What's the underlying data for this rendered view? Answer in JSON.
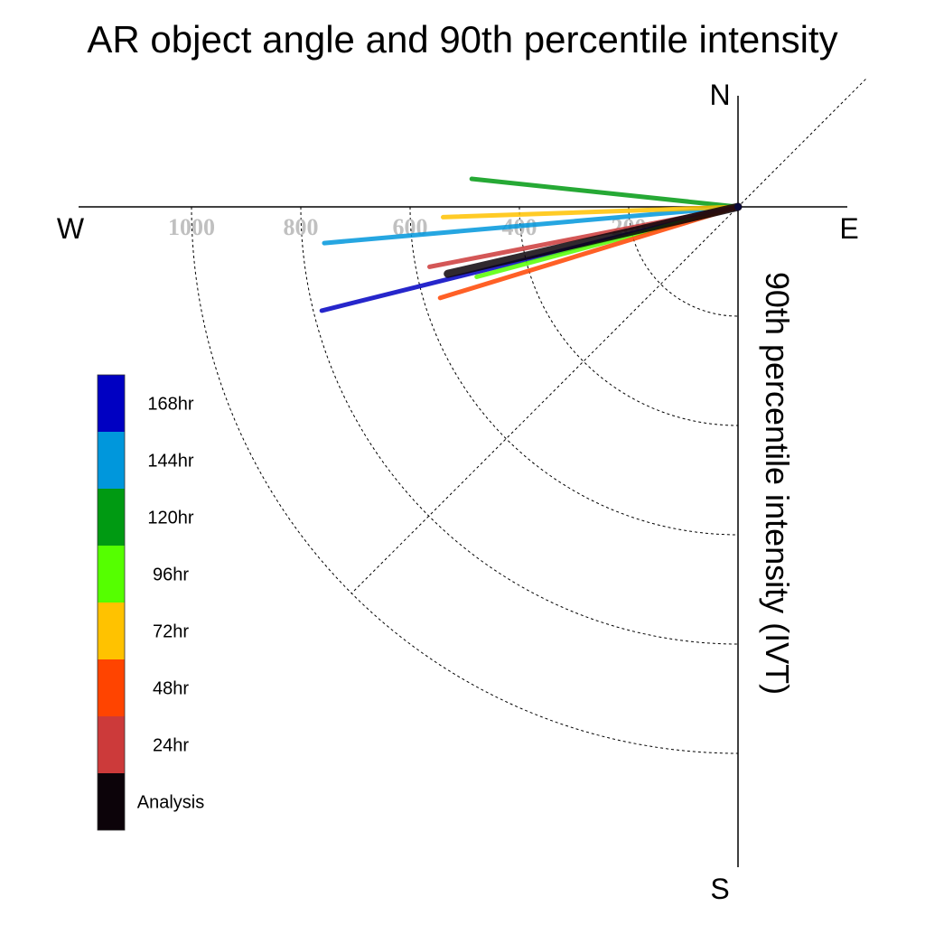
{
  "chart_data": {
    "type": "polar-vector",
    "title": "AR object angle and 90th percentile intensity",
    "radial_axis_label": "90th percentile intensity (IVT)",
    "compass": {
      "N": "N",
      "E": "E",
      "S": "S",
      "W": "W"
    },
    "radial_ticks": [
      200,
      400,
      600,
      800,
      1000
    ],
    "radial_tick_labels": [
      "200",
      "400",
      "600",
      "800",
      "1000"
    ],
    "rlim": [
      0,
      1000
    ],
    "angle_convention": "degrees counterclockwise from East",
    "grid": true,
    "legend_position": "left",
    "series": [
      {
        "name": "Analysis",
        "color": "#0c0309",
        "angle_deg": 193,
        "magnitude": 545
      },
      {
        "name": "24hr",
        "color": "#cc3a3a",
        "angle_deg": 191,
        "magnitude": 575
      },
      {
        "name": "48hr",
        "color": "#ff4400",
        "angle_deg": 197,
        "magnitude": 570
      },
      {
        "name": "72hr",
        "color": "#ffc200",
        "angle_deg": 182,
        "magnitude": 540
      },
      {
        "name": "96hr",
        "color": "#55ff00",
        "angle_deg": 195,
        "magnitude": 495
      },
      {
        "name": "120hr",
        "color": "#009a12",
        "angle_deg": 174,
        "magnitude": 490
      },
      {
        "name": "144hr",
        "color": "#0097dc",
        "angle_deg": 185,
        "magnitude": 760
      },
      {
        "name": "168hr",
        "color": "#0000c2",
        "angle_deg": 194,
        "magnitude": 785
      }
    ]
  }
}
